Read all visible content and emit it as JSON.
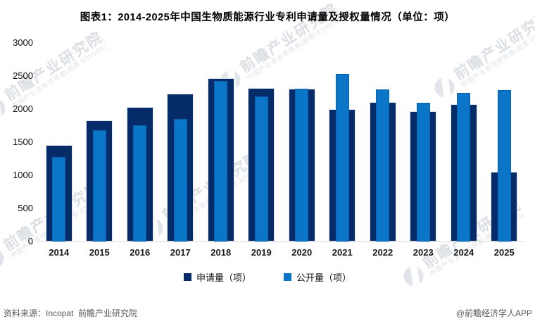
{
  "title": "图表1：2014-2025年中国生物质能源行业专利申请量及授权量情况（单位：项）",
  "chart_data": {
    "type": "bar",
    "title": "图表1：2014-2025年中国生物质能源行业专利申请量及授权量情况（单位：项）",
    "categories": [
      "2014",
      "2015",
      "2016",
      "2017",
      "2018",
      "2019",
      "2020",
      "2021",
      "2022",
      "2023",
      "2024",
      "2025"
    ],
    "series": [
      {
        "name": "申请量（项）",
        "color": "#052b69",
        "values": [
          1460,
          1830,
          2030,
          2230,
          2470,
          2320,
          2310,
          2000,
          2110,
          1970,
          2070,
          1050
        ]
      },
      {
        "name": "公开量（项）",
        "color": "#0b76c8",
        "values": [
          1280,
          1680,
          1760,
          1850,
          2430,
          2190,
          2310,
          2530,
          2300,
          2100,
          2240,
          2290
        ]
      }
    ],
    "xlabel": "",
    "ylabel": "",
    "ylim": [
      0,
      3000
    ],
    "ytick_step": 500,
    "yticks": [
      0,
      500,
      1000,
      1500,
      2000,
      2500,
      3000
    ],
    "grid": false,
    "legend_position": "bottom",
    "bar_style": "overlapped-nested"
  },
  "legend": {
    "items": [
      {
        "label": "申请量（项）",
        "color": "#052b69"
      },
      {
        "label": "公开量（项）",
        "color": "#0b76c8"
      }
    ]
  },
  "footer": {
    "source": "资料来源：Incopat  前瞻产业研究院",
    "credit": "@前瞻经济学人APP"
  },
  "watermark": {
    "text": "前瞻产业研究院",
    "subtext": "中国产业咨询领导者(股票:839599)"
  },
  "colors": {
    "bar_dark": "#052b69",
    "bar_light": "#0b76c8",
    "axis_line": "#d9d9d9",
    "footer_text": "#595959",
    "title_text": "#000000"
  }
}
